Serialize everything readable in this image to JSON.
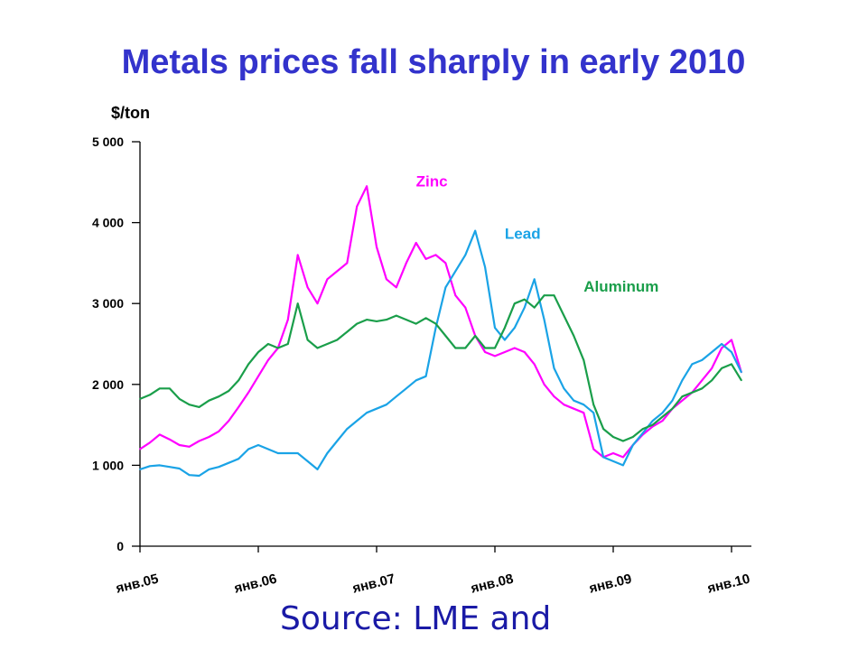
{
  "title": "Metals prices fall sharply in early 2010",
  "source_text": "Source: LME and",
  "chart_data": {
    "type": "line",
    "title": "Metals prices fall sharply in early 2010",
    "ylabel": "$/ton",
    "xlabel": "",
    "ylim": [
      0,
      5000
    ],
    "xlim": [
      "2005-01",
      "2010-02"
    ],
    "yticks": [
      {
        "value": 0,
        "label": "0"
      },
      {
        "value": 1000,
        "label": "1 000"
      },
      {
        "value": 2000,
        "label": "2 000"
      },
      {
        "value": 3000,
        "label": "3 000"
      },
      {
        "value": 4000,
        "label": "4 000"
      },
      {
        "value": 5000,
        "label": "5 000"
      }
    ],
    "xticks": [
      {
        "value": "2005-01",
        "label": "янв.05"
      },
      {
        "value": "2006-01",
        "label": "янв.06"
      },
      {
        "value": "2007-01",
        "label": "янв.07"
      },
      {
        "value": "2008-01",
        "label": "янв.08"
      },
      {
        "value": "2009-01",
        "label": "янв.09"
      },
      {
        "value": "2010-01",
        "label": "янв.10"
      }
    ],
    "grid": false,
    "legend": "labels next to lines",
    "x": [
      "2005-01",
      "2005-02",
      "2005-03",
      "2005-04",
      "2005-05",
      "2005-06",
      "2005-07",
      "2005-08",
      "2005-09",
      "2005-10",
      "2005-11",
      "2005-12",
      "2006-01",
      "2006-02",
      "2006-03",
      "2006-04",
      "2006-05",
      "2006-06",
      "2006-07",
      "2006-08",
      "2006-09",
      "2006-10",
      "2006-11",
      "2006-12",
      "2007-01",
      "2007-02",
      "2007-03",
      "2007-04",
      "2007-05",
      "2007-06",
      "2007-07",
      "2007-08",
      "2007-09",
      "2007-10",
      "2007-11",
      "2007-12",
      "2008-01",
      "2008-02",
      "2008-03",
      "2008-04",
      "2008-05",
      "2008-06",
      "2008-07",
      "2008-08",
      "2008-09",
      "2008-10",
      "2008-11",
      "2008-12",
      "2009-01",
      "2009-02",
      "2009-03",
      "2009-04",
      "2009-05",
      "2009-06",
      "2009-07",
      "2009-08",
      "2009-09",
      "2009-10",
      "2009-11",
      "2009-12",
      "2010-01",
      "2010-02"
    ],
    "series": [
      {
        "name": "Zinc",
        "color": "#ff00ff",
        "label_x": "2007-05",
        "label_y": 4450,
        "values": [
          1200,
          1280,
          1380,
          1320,
          1250,
          1230,
          1300,
          1350,
          1420,
          1550,
          1720,
          1900,
          2100,
          2300,
          2450,
          2800,
          3600,
          3200,
          3000,
          3300,
          3400,
          3500,
          4200,
          4450,
          3700,
          3300,
          3200,
          3500,
          3750,
          3550,
          3600,
          3500,
          3100,
          2950,
          2600,
          2400,
          2350,
          2400,
          2450,
          2400,
          2250,
          2000,
          1850,
          1750,
          1700,
          1650,
          1200,
          1100,
          1150,
          1100,
          1250,
          1380,
          1480,
          1550,
          1700,
          1800,
          1900,
          2050,
          2200,
          2450,
          2550,
          2150
        ]
      },
      {
        "name": "Lead",
        "color": "#1aa3e6",
        "label_x": "2008-02",
        "label_y": 3800,
        "values": [
          950,
          990,
          1000,
          980,
          960,
          880,
          870,
          950,
          980,
          1030,
          1080,
          1200,
          1250,
          1200,
          1150,
          1150,
          1150,
          1050,
          950,
          1150,
          1300,
          1450,
          1550,
          1650,
          1700,
          1750,
          1850,
          1950,
          2050,
          2100,
          2700,
          3200,
          3400,
          3600,
          3900,
          3450,
          2700,
          2550,
          2700,
          2950,
          3300,
          2800,
          2200,
          1950,
          1800,
          1750,
          1650,
          1100,
          1050,
          1000,
          1250,
          1400,
          1550,
          1650,
          1800,
          2050,
          2250,
          2300,
          2400,
          2500,
          2400,
          2150
        ]
      },
      {
        "name": "Aluminum",
        "color": "#1a9e4a",
        "label_x": "2008-10",
        "label_y": 3150,
        "values": [
          1820,
          1870,
          1950,
          1950,
          1820,
          1750,
          1720,
          1800,
          1850,
          1920,
          2050,
          2250,
          2400,
          2500,
          2450,
          2500,
          3000,
          2550,
          2450,
          2500,
          2550,
          2650,
          2750,
          2800,
          2780,
          2800,
          2850,
          2800,
          2750,
          2820,
          2750,
          2600,
          2450,
          2450,
          2600,
          2450,
          2450,
          2700,
          3000,
          3050,
          2950,
          3100,
          3100,
          2850,
          2600,
          2300,
          1750,
          1450,
          1350,
          1300,
          1350,
          1450,
          1500,
          1600,
          1700,
          1850,
          1900,
          1950,
          2050,
          2200,
          2250,
          2050
        ]
      }
    ]
  }
}
